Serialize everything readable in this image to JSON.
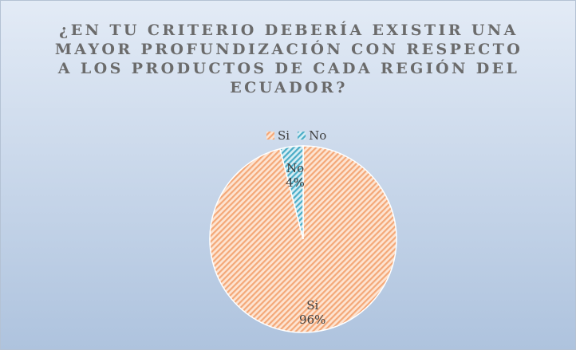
{
  "chart_data": {
    "type": "pie",
    "title": "¿EN TU CRITERIO DEBERÍA EXISTIR UNA MAYOR PROFUNDIZACIÓN CON RESPECTO A LOS PRODUCTOS DE CADA REGIÓN DEL ECUADOR?",
    "categories": [
      "Si",
      "No"
    ],
    "values": [
      96,
      4
    ],
    "value_labels": [
      "96%",
      "4%"
    ],
    "colors": [
      "#f4a878",
      "#4bacc6"
    ],
    "legend": "top"
  }
}
